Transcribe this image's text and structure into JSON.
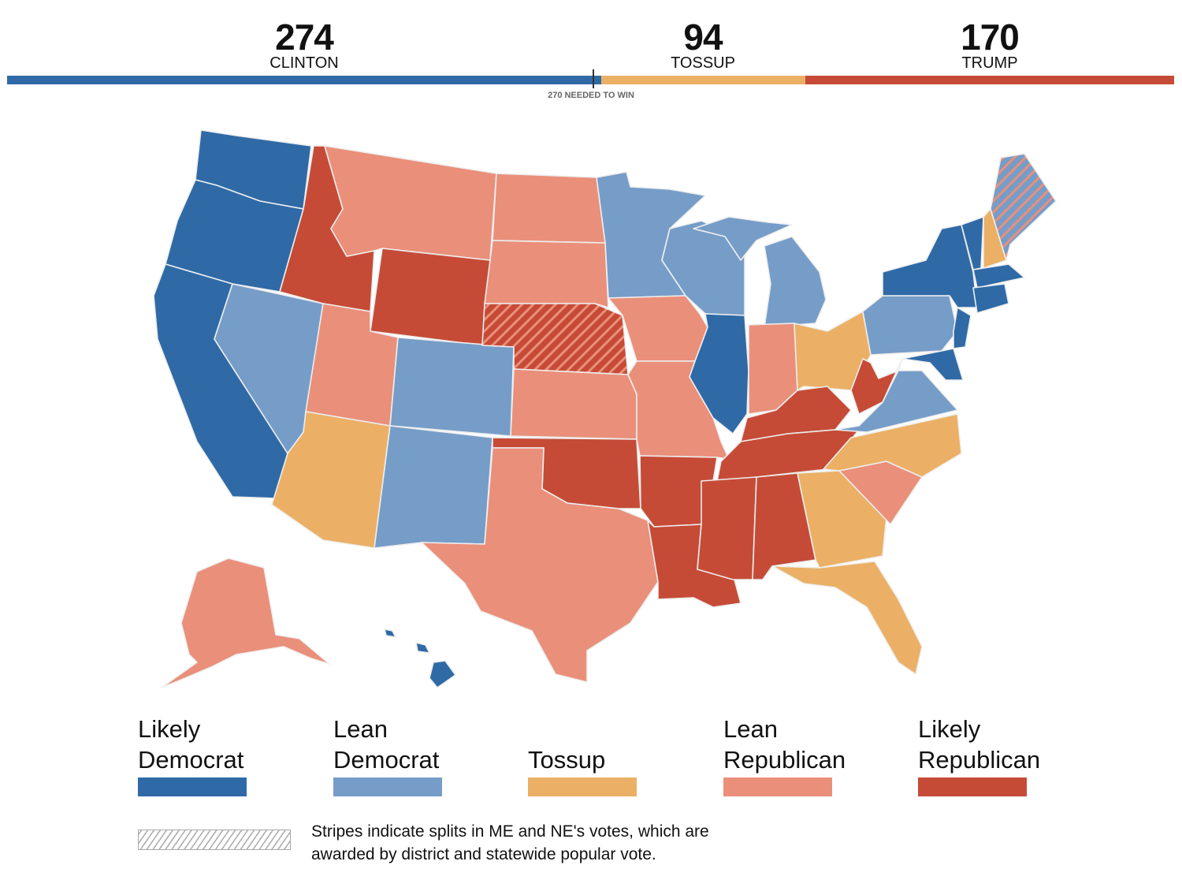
{
  "header": {
    "clinton": {
      "count": "274",
      "label": "CLINTON"
    },
    "tossup": {
      "count": "94",
      "label": "TOSSUP"
    },
    "trump": {
      "count": "170",
      "label": "TRUMP"
    },
    "needed_label": "270 NEEDED TO WIN",
    "electoral_votes": {
      "clinton": 274,
      "tossup": 94,
      "trump": 170,
      "total": 538,
      "needed": 270
    }
  },
  "colors": {
    "likely_dem": "#2f6aa7",
    "lean_dem": "#769dc8",
    "tossup": "#ebb065",
    "lean_rep": "#ea8f7a",
    "likely_rep": "#c64b37"
  },
  "legend": [
    {
      "line1": "Likely",
      "line2": "Democrat",
      "key": "likely_dem"
    },
    {
      "line1": "Lean",
      "line2": "Democrat",
      "key": "lean_dem"
    },
    {
      "line1": "",
      "line2": "Tossup",
      "key": "tossup"
    },
    {
      "line1": "Lean",
      "line2": "Republican",
      "key": "lean_rep"
    },
    {
      "line1": "Likely",
      "line2": "Republican",
      "key": "likely_rep"
    }
  ],
  "note": "Stripes indicate splits in ME and NE's votes, which are awarded by district and statewide popular vote.",
  "ratings": {
    "WA": "likely_dem",
    "OR": "likely_dem",
    "CA": "likely_dem",
    "NV": "lean_dem",
    "ID": "likely_rep",
    "MT": "lean_rep",
    "WY": "likely_rep",
    "UT": "lean_rep",
    "AZ": "tossup",
    "CO": "lean_dem",
    "NM": "lean_dem",
    "ND": "lean_rep",
    "SD": "lean_rep",
    "NE": "split_ne",
    "KS": "lean_rep",
    "OK": "likely_rep",
    "TX": "lean_rep",
    "MN": "lean_dem",
    "IA": "lean_rep",
    "MO": "lean_rep",
    "AR": "likely_rep",
    "LA": "likely_rep",
    "WI": "lean_dem",
    "IL": "likely_dem",
    "MI": "lean_dem",
    "MIU": "lean_dem",
    "IN": "lean_rep",
    "OH": "tossup",
    "KY": "likely_rep",
    "TN": "likely_rep",
    "MS": "likely_rep",
    "AL": "likely_rep",
    "GA": "tossup",
    "FL": "tossup",
    "SC": "lean_rep",
    "NC": "tossup",
    "VA": "lean_dem",
    "WV": "likely_rep",
    "PA": "lean_dem",
    "NY": "likely_dem",
    "NJ": "likely_dem",
    "MD": "likely_dem",
    "VT": "likely_dem",
    "NH": "tossup",
    "ME": "split_me",
    "MA": "likely_dem",
    "CT": "likely_dem",
    "AK": "lean_rep",
    "HI": "likely_dem",
    "HI2": "likely_dem",
    "HI3": "likely_dem"
  }
}
